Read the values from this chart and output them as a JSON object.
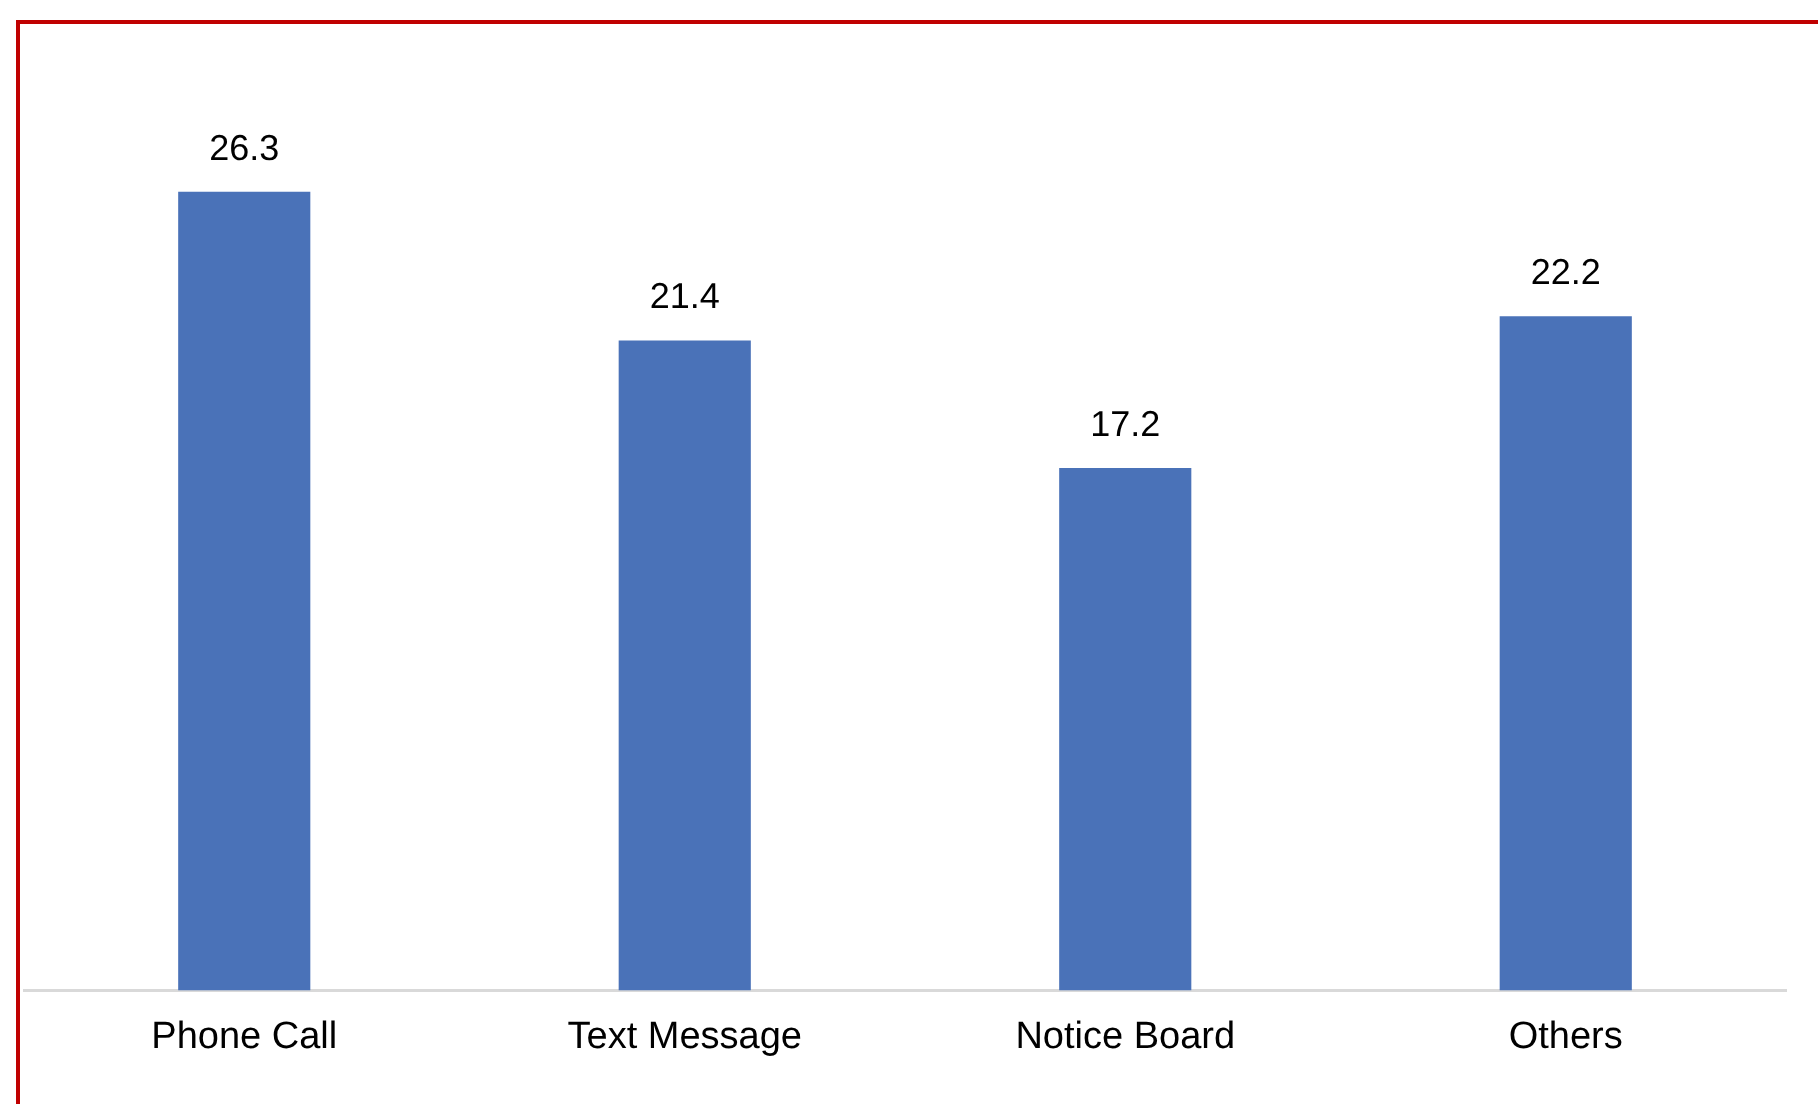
{
  "chart_data": {
    "type": "bar",
    "categories": [
      "Phone Call",
      "Text Message",
      "Notice Board",
      "Others"
    ],
    "values": [
      26.3,
      21.4,
      17.2,
      22.2
    ],
    "color": "#4a72b8",
    "data_labels": true,
    "grid": false,
    "legend": false
  }
}
